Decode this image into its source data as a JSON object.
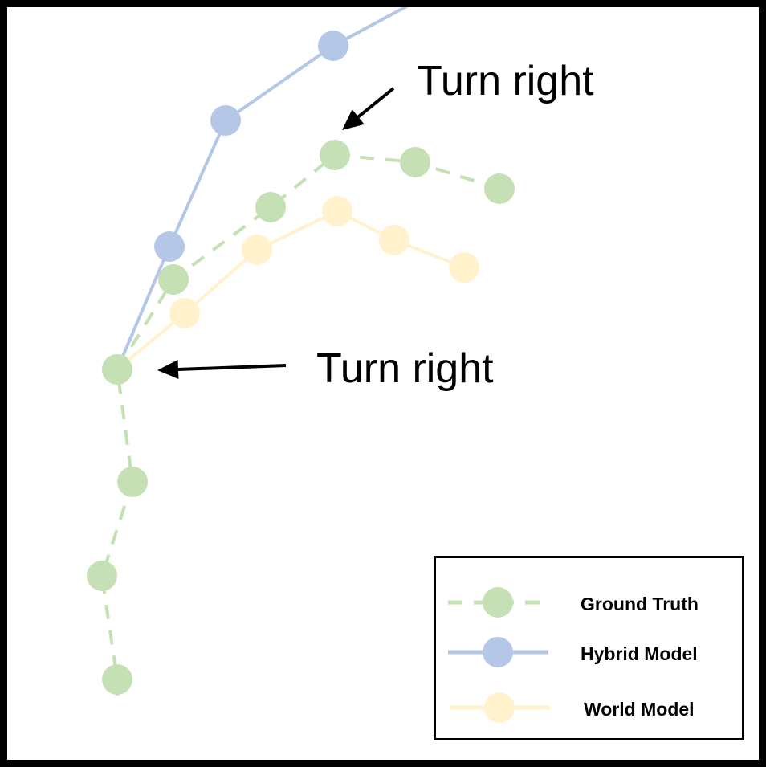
{
  "annotations": [
    {
      "text": "Turn right",
      "target": "ground-truth-upper-turn"
    },
    {
      "text": "Turn right",
      "target": "start-point"
    }
  ],
  "legend": [
    {
      "label": "Ground Truth",
      "color": "#c5e0b4",
      "line_style": "dashed"
    },
    {
      "label": "Hybrid Model",
      "color": "#b4c7e7",
      "line_style": "solid"
    },
    {
      "label": "World Model",
      "color": "#fff2cc",
      "line_style": "solid"
    }
  ],
  "arrow_color": "#000000"
}
